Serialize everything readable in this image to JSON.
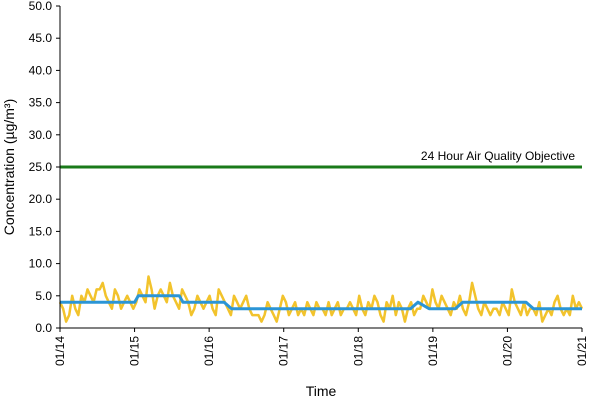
{
  "chart_data": {
    "type": "line",
    "title": "",
    "xlabel": "Time",
    "ylabel": "Concentration (µg/m³)",
    "ylim": [
      0,
      50
    ],
    "yticks": [
      "0.0",
      "5.0",
      "10.0",
      "15.0",
      "20.0",
      "25.0",
      "30.0",
      "35.0",
      "40.0",
      "45.0",
      "50.0"
    ],
    "xlim": [
      "01/14",
      "01/21"
    ],
    "xticks": [
      "01/14",
      "01/15",
      "01/16",
      "01/17",
      "01/18",
      "01/19",
      "01/20",
      "01/21"
    ],
    "grid": false,
    "legend": "none",
    "annotations": [
      {
        "text": "24 Hour Air Quality Objective",
        "y": 25,
        "color": "#1a7a1a"
      }
    ],
    "series": [
      {
        "role": "hourly",
        "color": "#f2c32c",
        "x_start": "01/14",
        "x_end": "01/21",
        "values": [
          4,
          3,
          1,
          2,
          5,
          3,
          2,
          5,
          4,
          6,
          5,
          4,
          6,
          6,
          7,
          5,
          4,
          3,
          6,
          5,
          3,
          4,
          5,
          4,
          3,
          4,
          6,
          5,
          4,
          8,
          6,
          3,
          5,
          6,
          5,
          4,
          7,
          5,
          4,
          3,
          6,
          5,
          4,
          2,
          3,
          5,
          4,
          3,
          4,
          5,
          3,
          2,
          6,
          5,
          4,
          3,
          2,
          5,
          4,
          3,
          4,
          5,
          3,
          2,
          2,
          2,
          1,
          2,
          4,
          3,
          2,
          1,
          3,
          5,
          4,
          2,
          3,
          4,
          2,
          3,
          2,
          4,
          3,
          2,
          4,
          3,
          3,
          2,
          4,
          2,
          3,
          4,
          2,
          3,
          3,
          4,
          3,
          2,
          5,
          3,
          2,
          4,
          3,
          5,
          4,
          2,
          1,
          4,
          3,
          5,
          2,
          4,
          3,
          1,
          3,
          4,
          2,
          3,
          3,
          5,
          4,
          3,
          6,
          4,
          3,
          5,
          4,
          3,
          2,
          4,
          3,
          5,
          3,
          2,
          4,
          7,
          5,
          3,
          2,
          4,
          3,
          2,
          3,
          3,
          2,
          4,
          3,
          2,
          6,
          4,
          3,
          2,
          4,
          2,
          3,
          3,
          2,
          4,
          1,
          2,
          3,
          2,
          4,
          5,
          3,
          2,
          3,
          2,
          5,
          3,
          4,
          3
        ]
      },
      {
        "role": "daily",
        "color": "#2b95d6",
        "points": [
          {
            "x": 0.0,
            "y": 4
          },
          {
            "x": 1.0,
            "y": 4
          },
          {
            "x": 1.05,
            "y": 5
          },
          {
            "x": 1.6,
            "y": 5
          },
          {
            "x": 1.65,
            "y": 4
          },
          {
            "x": 2.2,
            "y": 4
          },
          {
            "x": 2.3,
            "y": 3
          },
          {
            "x": 4.7,
            "y": 3
          },
          {
            "x": 4.8,
            "y": 4
          },
          {
            "x": 4.95,
            "y": 3
          },
          {
            "x": 5.3,
            "y": 3
          },
          {
            "x": 5.4,
            "y": 4
          },
          {
            "x": 6.25,
            "y": 4
          },
          {
            "x": 6.35,
            "y": 3
          },
          {
            "x": 7.0,
            "y": 3
          }
        ]
      },
      {
        "role": "objective",
        "color": "#1a7a1a",
        "points": [
          {
            "x": 0,
            "y": 25
          },
          {
            "x": 7,
            "y": 25
          }
        ]
      }
    ]
  }
}
